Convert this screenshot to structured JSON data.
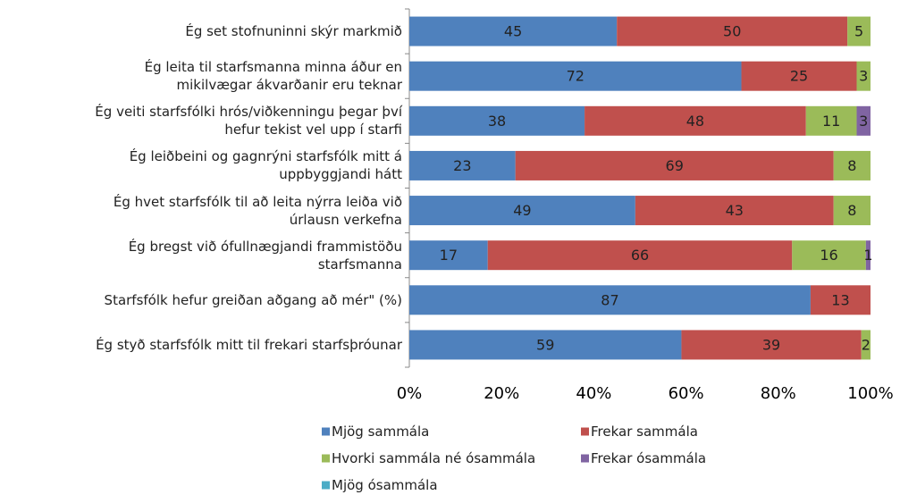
{
  "chart_data": {
    "type": "stacked-bar-horizontal",
    "categories": [
      "Ég set stofnuninni skýr markmið",
      "Ég leita til starfsmanna minna áður en\nmikilvægar ákvarðanir eru teknar",
      "Ég veiti starfsfólki hrós/viðkenningu þegar því\nhefur tekist vel upp í starfi",
      "Ég leiðbeini og gagnrýni starfsfólk mitt á\nuppbyggjandi hátt",
      "Ég hvet starfsfólk til að leita nýrra leiða við\núrlausn verkefna",
      "Ég bregst við ófullnægjandi frammistöðu\nstarfsmanna",
      "Starfsfólk hefur greiðan aðgang að mér\" (%)",
      "Ég styð starfsfólk mitt til frekari starfsþróunar"
    ],
    "series": [
      {
        "name": "Mjög sammála",
        "color": "#4f81bd",
        "values": [
          45,
          72,
          38,
          23,
          49,
          17,
          87,
          59
        ]
      },
      {
        "name": "Frekar sammála",
        "color": "#c0504d",
        "values": [
          50,
          25,
          48,
          69,
          43,
          66,
          13,
          39
        ]
      },
      {
        "name": "Hvorki sammála né ósammála",
        "color": "#9bbb59",
        "values": [
          5,
          3,
          11,
          8,
          8,
          16,
          null,
          2
        ]
      },
      {
        "name": "Frekar ósammála",
        "color": "#8064a2",
        "values": [
          null,
          null,
          3,
          null,
          null,
          1,
          null,
          null
        ]
      },
      {
        "name": "Mjög ósammála",
        "color": "#4bacc6",
        "values": [
          null,
          null,
          null,
          null,
          null,
          null,
          null,
          null
        ]
      }
    ],
    "xlim": [
      0,
      100
    ],
    "xticks": [
      {
        "value": 0,
        "label": "0%"
      },
      {
        "value": 20,
        "label": "20%"
      },
      {
        "value": 40,
        "label": "40%"
      },
      {
        "value": 60,
        "label": "60%"
      },
      {
        "value": 80,
        "label": "80%"
      },
      {
        "value": 100,
        "label": "100%"
      }
    ],
    "grid": false
  }
}
